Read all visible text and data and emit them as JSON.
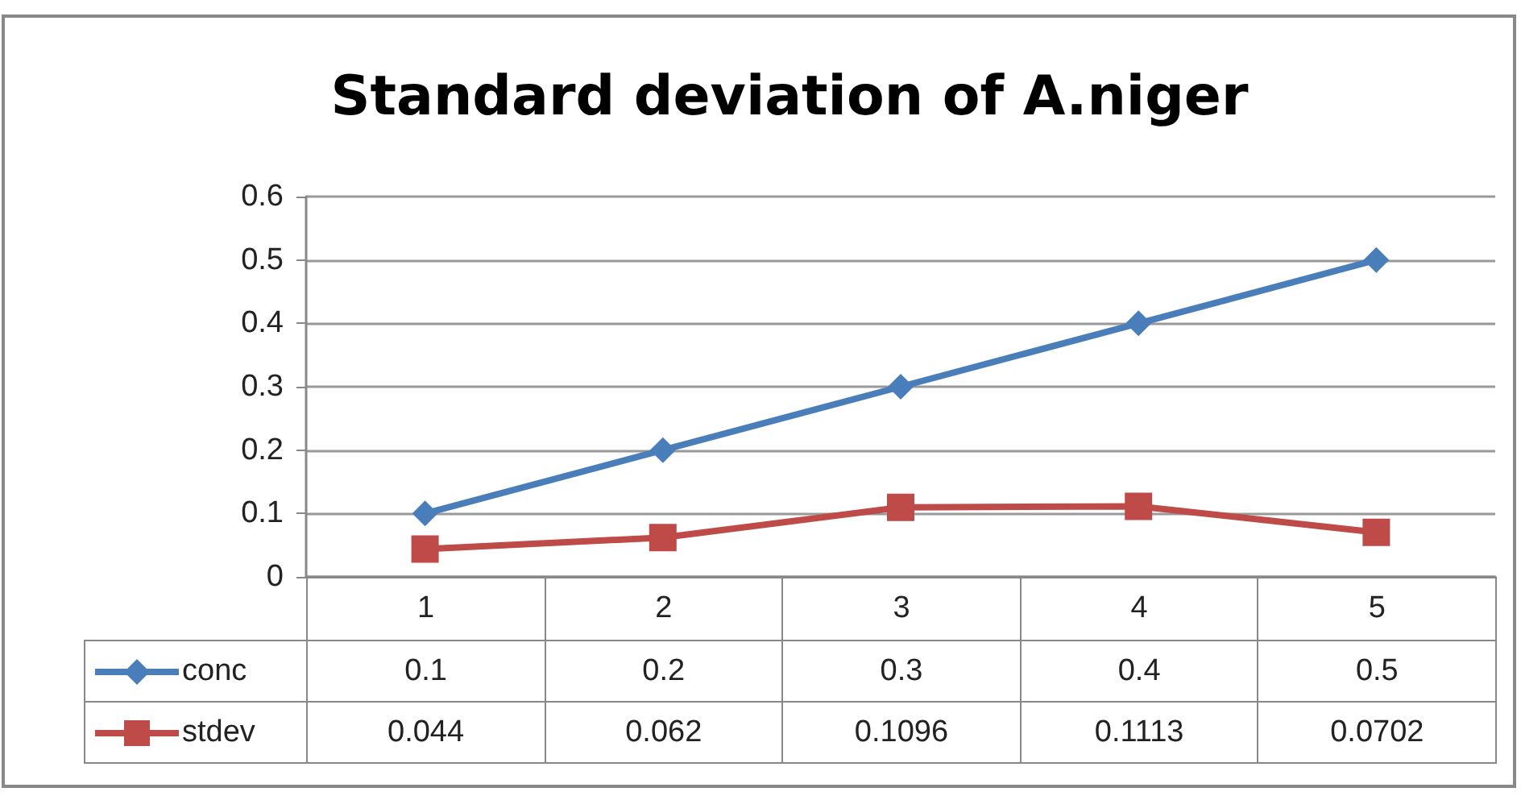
{
  "chart_data": {
    "type": "line",
    "title": "Standard deviation of A.niger",
    "categories": [
      "1",
      "2",
      "3",
      "4",
      "5"
    ],
    "series": [
      {
        "name": "conc",
        "color": "#4a7ebb",
        "marker": "diamond",
        "values": [
          0.1,
          0.2,
          0.3,
          0.4,
          0.5
        ]
      },
      {
        "name": "stdev",
        "color": "#be4b48",
        "marker": "square",
        "values": [
          0.044,
          0.062,
          0.1096,
          0.1113,
          0.0702
        ]
      }
    ],
    "ylim": [
      0,
      0.6
    ],
    "yticks": [
      0,
      0.1,
      0.2,
      0.3,
      0.4,
      0.5,
      0.6
    ],
    "grid": "y",
    "legend": "bottom left",
    "data_labels": true,
    "line_style": "solid"
  }
}
